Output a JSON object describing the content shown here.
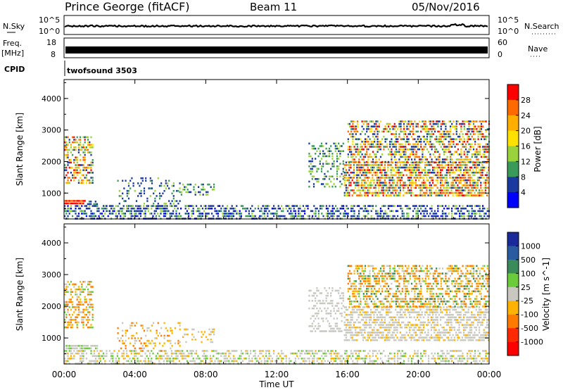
{
  "header": {
    "station": "Prince George (fitACF)",
    "beam": "Beam 11",
    "date": "05/Nov/2016"
  },
  "strips": {
    "nsky_label": "N.Sky",
    "nsky_ticks": [
      "10^5",
      "10^0"
    ],
    "nsearch_label": "N.Search",
    "nsearch_ticks": [
      "10^5",
      "10^0"
    ],
    "freq_label_top": "Freq.",
    "freq_label_unit": "[MHz]",
    "freq_ticks": [
      "18",
      "8"
    ],
    "nave_label": "Nave",
    "nave_ticks": [
      "60",
      "0"
    ],
    "cpid_label": "CPID",
    "cpid_value": "twofsound 3503"
  },
  "chart_data": [
    {
      "type": "heatmap",
      "id": "power",
      "ylabel": "Slant Range [km]",
      "xlabel": "",
      "x_ticks": [
        "00:00",
        "04:00",
        "08:00",
        "12:00",
        "16:00",
        "20:00",
        "00:00"
      ],
      "y_ticks": [
        1000,
        2000,
        3000,
        4000
      ],
      "xlim_hours": [
        0,
        24
      ],
      "ylim_km": [
        180,
        4600
      ],
      "colorbar": {
        "label": "Power [dB]",
        "ticks": [
          "28",
          "24",
          "20",
          "16",
          "12",
          "8",
          "4"
        ],
        "colors": [
          "#ff0000",
          "#ff6a00",
          "#ffae00",
          "#ffe100",
          "#9ad23c",
          "#3a9a5a",
          "#1a3aa0",
          "#0000ff"
        ]
      },
      "regions": [
        {
          "t0": 0.0,
          "t1": 1.6,
          "r0": 1300,
          "r1": 2800,
          "density": 0.55,
          "levels": [
            0,
            1,
            2,
            3,
            4,
            5,
            6
          ]
        },
        {
          "t0": 0.0,
          "t1": 1.2,
          "r0": 640,
          "r1": 780,
          "density": 0.9,
          "levels": [
            0,
            0,
            1,
            1
          ]
        },
        {
          "t0": 1.3,
          "t1": 1.9,
          "r0": 640,
          "r1": 760,
          "density": 0.6,
          "levels": [
            5,
            6,
            6
          ]
        },
        {
          "t0": 0.0,
          "t1": 24.0,
          "r0": 180,
          "r1": 620,
          "density": 0.55,
          "levels": [
            5,
            6,
            6,
            6,
            7,
            4
          ]
        },
        {
          "t0": 3.0,
          "t1": 6.5,
          "r0": 600,
          "r1": 1500,
          "density": 0.25,
          "levels": [
            6,
            6,
            5,
            4
          ]
        },
        {
          "t0": 6.5,
          "t1": 8.5,
          "r0": 900,
          "r1": 1300,
          "density": 0.35,
          "levels": [
            6,
            5,
            4
          ]
        },
        {
          "t0": 13.8,
          "t1": 15.8,
          "r0": 1200,
          "r1": 2600,
          "density": 0.35,
          "levels": [
            6,
            5,
            4
          ]
        },
        {
          "t0": 15.8,
          "t1": 24.0,
          "r0": 900,
          "r1": 2000,
          "density": 0.7,
          "levels": [
            0,
            1,
            1,
            2,
            3,
            4,
            5,
            6
          ]
        },
        {
          "t0": 16.0,
          "t1": 24.0,
          "r0": 2000,
          "r1": 3300,
          "density": 0.55,
          "levels": [
            0,
            1,
            2,
            3,
            4,
            5,
            6,
            6
          ]
        }
      ]
    },
    {
      "type": "heatmap",
      "id": "velocity",
      "ylabel": "Slant Range [km]",
      "xlabel": "Time UT",
      "x_ticks": [
        "00:00",
        "04:00",
        "08:00",
        "12:00",
        "16:00",
        "20:00",
        "00:00"
      ],
      "y_ticks": [
        1000,
        2000,
        3000,
        4000
      ],
      "xlim_hours": [
        0,
        24
      ],
      "ylim_km": [
        180,
        4600
      ],
      "colorbar": {
        "label": "Velocity [m s^-1]",
        "ticks": [
          "1000",
          "500",
          "100",
          "25",
          "-25",
          "-100",
          "-500",
          "-1000"
        ],
        "colors": [
          "#1a2a9a",
          "#2a5aa0",
          "#3a8a5a",
          "#6acc3a",
          "#c8c8c0",
          "#ffb300",
          "#ff7a00",
          "#ff2a00",
          "#ff0000"
        ]
      },
      "regions": [
        {
          "t0": 0.0,
          "t1": 1.6,
          "r0": 1300,
          "r1": 2800,
          "density": 0.5,
          "levels": [
            4,
            5,
            5,
            6,
            6,
            3
          ]
        },
        {
          "t0": 0.0,
          "t1": 1.9,
          "r0": 640,
          "r1": 780,
          "density": 0.8,
          "levels": [
            4,
            4,
            3
          ]
        },
        {
          "t0": 0.0,
          "t1": 24.0,
          "r0": 180,
          "r1": 620,
          "density": 0.5,
          "levels": [
            4,
            4,
            4,
            3,
            5
          ]
        },
        {
          "t0": 3.0,
          "t1": 6.5,
          "r0": 600,
          "r1": 1500,
          "density": 0.25,
          "levels": [
            5,
            6,
            5,
            4
          ]
        },
        {
          "t0": 6.5,
          "t1": 8.5,
          "r0": 900,
          "r1": 1300,
          "density": 0.3,
          "levels": [
            4,
            5
          ]
        },
        {
          "t0": 13.8,
          "t1": 15.8,
          "r0": 1200,
          "r1": 2600,
          "density": 0.35,
          "levels": [
            4,
            4,
            4
          ]
        },
        {
          "t0": 15.8,
          "t1": 24.0,
          "r0": 900,
          "r1": 2000,
          "density": 0.6,
          "levels": [
            4,
            4,
            4,
            4,
            5
          ]
        },
        {
          "t0": 16.0,
          "t1": 24.0,
          "r0": 2000,
          "r1": 3300,
          "density": 0.55,
          "levels": [
            5,
            5,
            6,
            6,
            3,
            2,
            4
          ]
        }
      ]
    }
  ]
}
